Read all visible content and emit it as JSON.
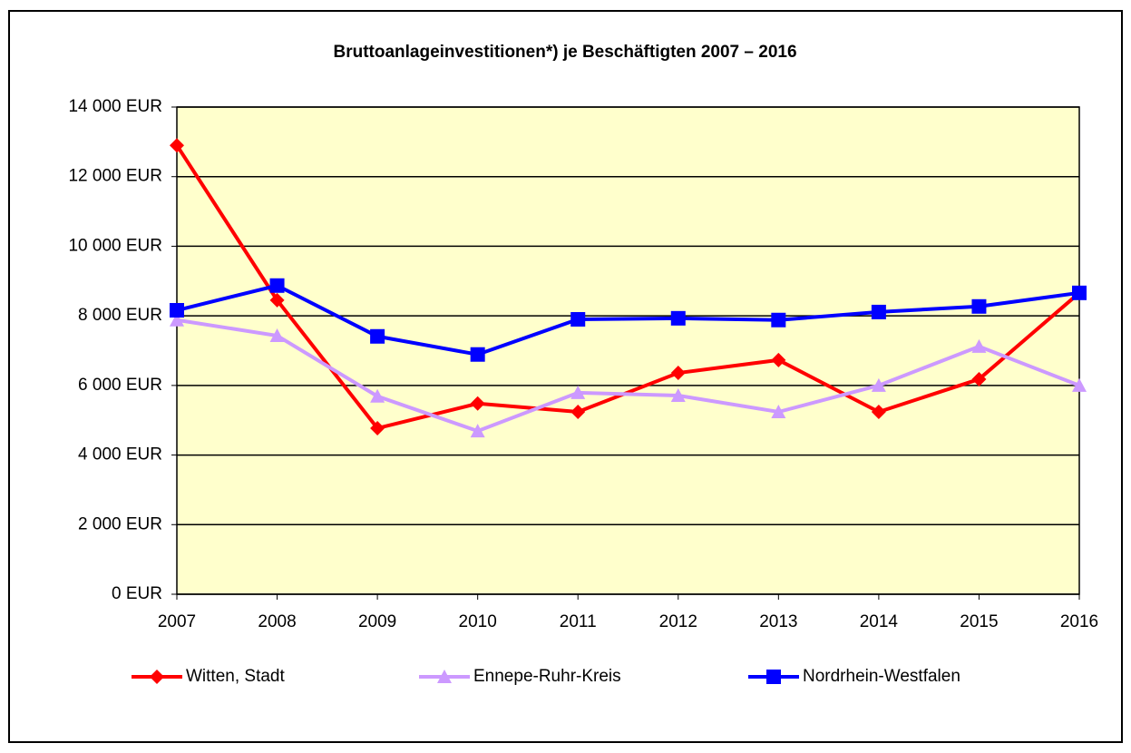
{
  "chart_data": {
    "type": "line",
    "title": "Bruttoanlageinvestitionen*) je Beschäftigten 2007 – 2016",
    "categories": [
      "2007",
      "2008",
      "2009",
      "2010",
      "2011",
      "2012",
      "2013",
      "2014",
      "2015",
      "2016"
    ],
    "series": [
      {
        "name": "Witten, Stadt",
        "color": "#ff0000",
        "marker": "diamond",
        "values": [
          12900,
          8450,
          4770,
          5480,
          5240,
          6360,
          6730,
          5240,
          6180,
          8660
        ]
      },
      {
        "name": "Ennepe-Ruhr-Kreis",
        "color": "#cc99ff",
        "marker": "triangle",
        "values": [
          7880,
          7430,
          5690,
          4690,
          5790,
          5710,
          5240,
          6000,
          7120,
          6000
        ]
      },
      {
        "name": "Nordrhein-Westfalen",
        "color": "#0000ff",
        "marker": "square",
        "values": [
          8160,
          8870,
          7410,
          6890,
          7900,
          7930,
          7880,
          8110,
          8270,
          8660
        ]
      }
    ],
    "ylim": [
      0,
      14000
    ],
    "yticks": [
      {
        "value": 0,
        "label": "0 EUR"
      },
      {
        "value": 2000,
        "label": "2 000 EUR"
      },
      {
        "value": 4000,
        "label": "4 000 EUR"
      },
      {
        "value": 6000,
        "label": "6 000 EUR"
      },
      {
        "value": 8000,
        "label": "8 000 EUR"
      },
      {
        "value": 10000,
        "label": "10 000 EUR"
      },
      {
        "value": 12000,
        "label": "12 000 EUR"
      },
      {
        "value": 14000,
        "label": "14 000 EUR"
      }
    ],
    "grid": true,
    "legend": "bottom",
    "plot_background": "#ffffcc"
  }
}
